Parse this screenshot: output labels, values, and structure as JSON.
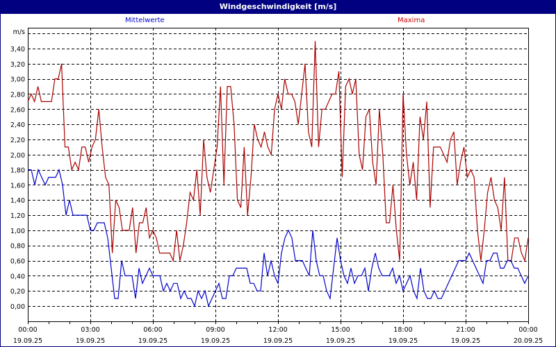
{
  "title": "Windgeschwindigkeit [m/s]",
  "legend": {
    "mean_label": "Mittelwerte",
    "max_label": "Maxima",
    "mean_color": "#0000cc",
    "max_color": "#aa0000"
  },
  "colors": {
    "titlebar": "#000080",
    "grid": "#000000",
    "background": "#ffffff"
  },
  "chart_data": {
    "type": "line",
    "title": "Windgeschwindigkeit [m/s]",
    "ylabel": "m/s",
    "xlabel": "",
    "ylim": [
      0,
      3.6
    ],
    "grid": true,
    "legend_position": "top",
    "y_ticks": [
      "0,00",
      "0,20",
      "0,40",
      "0,60",
      "0,80",
      "1,00",
      "1,20",
      "1,40",
      "1,60",
      "1,80",
      "2,00",
      "2,20",
      "2,40",
      "2,60",
      "2,80",
      "3,00",
      "3,20",
      "3,40"
    ],
    "x_ticks": [
      {
        "time": "00:00",
        "date": "19.09.25"
      },
      {
        "time": "03:00",
        "date": "19.09.25"
      },
      {
        "time": "06:00",
        "date": "19.09.25"
      },
      {
        "time": "09:00",
        "date": "19.09.25"
      },
      {
        "time": "12:00",
        "date": "19.09.25"
      },
      {
        "time": "15:00",
        "date": "19.09.25"
      },
      {
        "time": "18:00",
        "date": "19.09.25"
      },
      {
        "time": "21:00",
        "date": "19.09.25"
      },
      {
        "time": "00:00",
        "date": "20.09.25"
      }
    ],
    "x_interval_minutes": 10,
    "series": [
      {
        "name": "Mittelwerte",
        "color": "#0000cc",
        "values": [
          1.8,
          1.8,
          1.6,
          1.8,
          1.7,
          1.6,
          1.7,
          1.7,
          1.7,
          1.8,
          1.6,
          1.2,
          1.4,
          1.2,
          1.2,
          1.2,
          1.2,
          1.2,
          1.0,
          1.0,
          1.1,
          1.1,
          1.1,
          0.9,
          0.5,
          0.1,
          0.1,
          0.6,
          0.4,
          0.4,
          0.4,
          0.1,
          0.5,
          0.3,
          0.4,
          0.5,
          0.4,
          0.4,
          0.4,
          0.2,
          0.3,
          0.2,
          0.3,
          0.3,
          0.1,
          0.2,
          0.1,
          0.1,
          0.0,
          0.2,
          0.1,
          0.2,
          0.0,
          0.1,
          0.2,
          0.3,
          0.1,
          0.1,
          0.4,
          0.4,
          0.5,
          0.5,
          0.5,
          0.5,
          0.3,
          0.3,
          0.2,
          0.2,
          0.7,
          0.4,
          0.6,
          0.4,
          0.3,
          0.7,
          0.9,
          1.0,
          0.9,
          0.6,
          0.6,
          0.6,
          0.5,
          0.4,
          1.0,
          0.6,
          0.4,
          0.4,
          0.2,
          0.1,
          0.5,
          0.9,
          0.6,
          0.4,
          0.3,
          0.5,
          0.3,
          0.4,
          0.4,
          0.5,
          0.2,
          0.5,
          0.7,
          0.5,
          0.4,
          0.4,
          0.4,
          0.5,
          0.3,
          0.4,
          0.2,
          0.3,
          0.4,
          0.2,
          0.1,
          0.5,
          0.2,
          0.1,
          0.1,
          0.2,
          0.1,
          0.1,
          0.2,
          0.3,
          0.4,
          0.5,
          0.6,
          0.6,
          0.6,
          0.7,
          0.6,
          0.5,
          0.4,
          0.3,
          0.6,
          0.6,
          0.7,
          0.7,
          0.5,
          0.5,
          0.6,
          0.6,
          0.5,
          0.5,
          0.4,
          0.3,
          0.4
        ]
      },
      {
        "name": "Maxima",
        "color": "#aa0000",
        "values": [
          2.7,
          2.8,
          2.7,
          2.9,
          2.7,
          2.7,
          2.7,
          2.7,
          3.0,
          3.0,
          3.2,
          2.1,
          2.1,
          1.8,
          1.9,
          1.8,
          2.1,
          2.1,
          1.9,
          2.1,
          2.2,
          2.6,
          2.1,
          1.7,
          1.6,
          0.7,
          1.4,
          1.3,
          1.0,
          1.0,
          1.0,
          1.3,
          0.7,
          1.1,
          1.1,
          1.3,
          0.9,
          1.0,
          0.9,
          0.7,
          0.7,
          0.7,
          0.7,
          0.6,
          1.0,
          0.6,
          0.8,
          1.1,
          1.5,
          1.4,
          1.8,
          1.2,
          2.2,
          1.7,
          1.5,
          1.8,
          2.1,
          2.9,
          1.6,
          2.9,
          2.9,
          2.4,
          1.4,
          1.3,
          2.1,
          1.2,
          1.7,
          2.4,
          2.2,
          2.1,
          2.3,
          2.1,
          2.0,
          2.6,
          2.8,
          2.6,
          3.0,
          2.8,
          2.8,
          2.7,
          2.4,
          2.8,
          3.2,
          2.3,
          2.1,
          3.5,
          2.1,
          2.6,
          2.6,
          2.7,
          2.8,
          2.8,
          3.1,
          1.7,
          2.9,
          3.0,
          2.8,
          3.0,
          2.0,
          1.8,
          2.5,
          2.6,
          1.9,
          1.6,
          2.6,
          2.0,
          1.1,
          1.1,
          1.6,
          1.0,
          0.6,
          2.8,
          2.0,
          1.6,
          1.9,
          1.4,
          2.5,
          2.2,
          2.7,
          1.3,
          2.1,
          2.1,
          2.1,
          2.0,
          1.9,
          2.2,
          2.3,
          1.6,
          1.9,
          2.1,
          1.7,
          1.8,
          1.7,
          1.0,
          0.6,
          1.0,
          1.5,
          1.7,
          1.4,
          1.3,
          1.0,
          1.7,
          0.6,
          0.6,
          0.9,
          0.9,
          0.7,
          0.6,
          0.9
        ]
      }
    ]
  }
}
